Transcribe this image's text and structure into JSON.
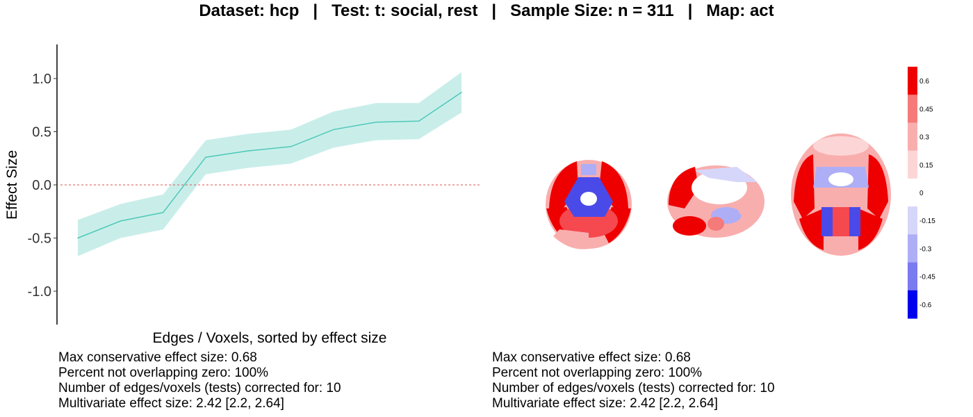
{
  "title": "Dataset: hcp   |   Test: t: social, rest   |   Sample Size: n = 311   |   Map: act",
  "chart_data": [
    {
      "type": "line",
      "xlabel": "Edges / Voxels, sorted by effect size",
      "ylabel": "Effect Size",
      "ylim": [
        -1.3,
        1.3
      ],
      "y_ticks": [
        "1.0",
        "0.5",
        "0.0",
        "-0.5",
        "-1.0"
      ],
      "y_tick_values": [
        1.0,
        0.5,
        0.0,
        -0.5,
        -1.0
      ],
      "x": [
        1,
        2,
        3,
        4,
        5,
        6,
        7,
        8,
        9,
        10
      ],
      "series": [
        {
          "values": [
            -0.5,
            -0.34,
            -0.26,
            0.26,
            0.32,
            0.36,
            0.52,
            0.59,
            0.6,
            0.87
          ],
          "lower": [
            -0.67,
            -0.5,
            -0.42,
            0.1,
            0.16,
            0.2,
            0.35,
            0.42,
            0.43,
            0.68
          ],
          "upper": [
            -0.33,
            -0.18,
            -0.09,
            0.42,
            0.48,
            0.52,
            0.69,
            0.77,
            0.77,
            1.06
          ],
          "color": "#4ec8b8",
          "band_color": "#c9eeea"
        }
      ],
      "reference_line": {
        "y": 0,
        "color": "#d9534f",
        "style": "dashed"
      },
      "grid": false
    },
    {
      "type": "heatmap",
      "legend_type": "colorbar",
      "legend_labels": [
        "0.6",
        "0.45",
        "0.3",
        "0.15",
        "0",
        "-0.15",
        "-0.3",
        "-0.45",
        "-0.6"
      ],
      "legend_values": [
        0.6,
        0.45,
        0.3,
        0.15,
        0,
        -0.15,
        -0.3,
        -0.45,
        -0.6
      ],
      "legend_colors": [
        "#ee0000",
        "#f57a7a",
        "#f9aeae",
        "#fcd6d6",
        "#ffffff",
        "#d6d6fb",
        "#aeaef6",
        "#7a7af1",
        "#0000ee"
      ]
    }
  ],
  "stats_left": [
    "Max conservative effect size: 0.68",
    "Percent not overlapping zero: 100%",
    "Number of edges/voxels (tests) corrected for: 10",
    "Multivariate effect size: 2.42 [2.2, 2.64]"
  ],
  "stats_right": [
    "Max conservative effect size: 0.68",
    "Percent not overlapping zero: 100%",
    "Number of edges/voxels (tests) corrected for: 10",
    "Multivariate effect size: 2.42 [2.2, 2.64]"
  ]
}
